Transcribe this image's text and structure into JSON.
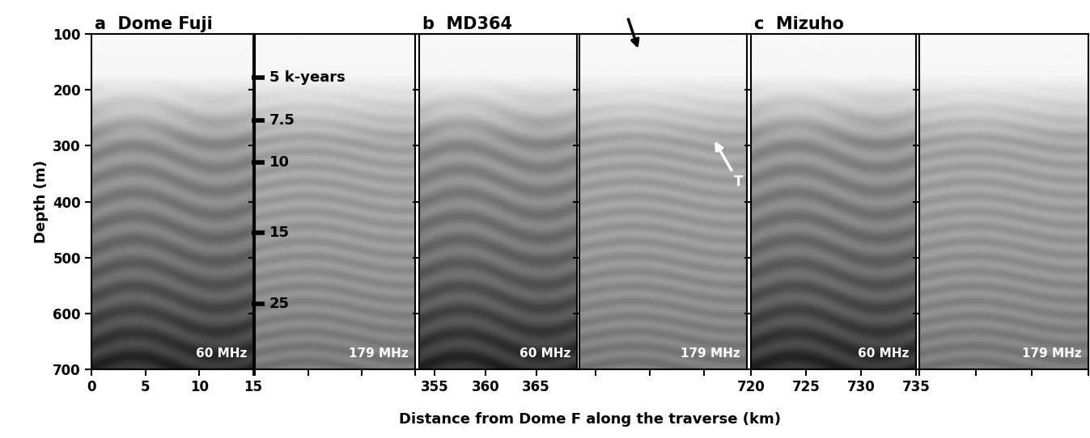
{
  "chart_data": {
    "type": "radargram",
    "ylabel": "Depth (m)",
    "xlabel": "Distance from Dome F along the traverse (km)",
    "ylim": [
      700,
      100
    ],
    "yticks": [
      100,
      200,
      300,
      400,
      500,
      600,
      700
    ],
    "sites": [
      {
        "title": "a  Dome Fuji",
        "xlim": [
          0,
          15
        ],
        "xticks": [
          0,
          5,
          10,
          15
        ],
        "panels": [
          {
            "frequency": "60 MHz"
          },
          {
            "frequency": "179 MHz",
            "tick_labels": false,
            "age_scale": [
              {
                "value": 178,
                "label": "5 k-years"
              },
              {
                "value": 255,
                "label": "7.5"
              },
              {
                "value": 330,
                "label": "10"
              },
              {
                "value": 455,
                "label": "15"
              },
              {
                "value": 583,
                "label": "25"
              }
            ]
          }
        ]
      },
      {
        "title": "b  MD364",
        "xlim": [
          353.5,
          369
        ],
        "xticks": [
          355,
          360,
          365
        ],
        "panels": [
          {
            "frequency": "60 MHz",
            "tick_labels": "x"
          },
          {
            "frequency": "179 MHz",
            "tick_labels": false,
            "arrows": [
              {
                "x": 359.0,
                "depth": 130,
                "color": "black"
              },
              {
                "x": 365.9,
                "depth": 288,
                "color": "white",
                "label": "T"
              }
            ]
          }
        ]
      },
      {
        "title": "c  Mizuho",
        "xlim": [
          720,
          735
        ],
        "xticks": [
          720,
          725,
          730,
          735
        ],
        "panels": [
          {
            "frequency": "60 MHz",
            "tick_labels": "x"
          },
          {
            "frequency": "179 MHz",
            "tick_labels": false
          }
        ]
      }
    ]
  }
}
